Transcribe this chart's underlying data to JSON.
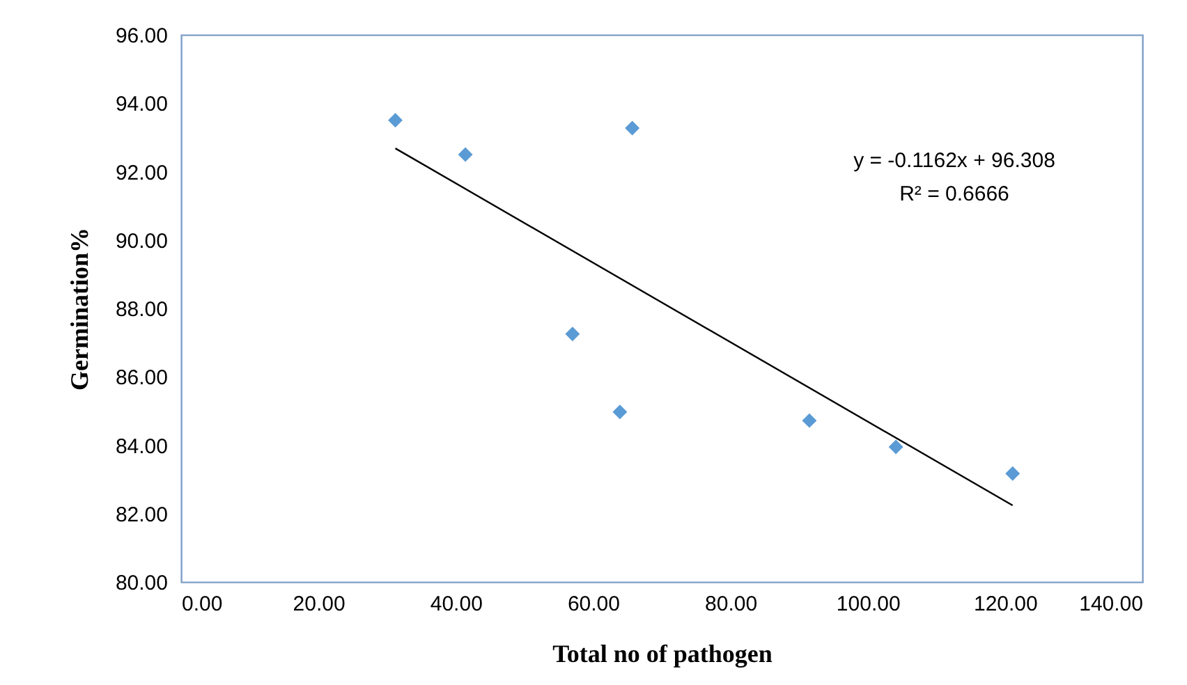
{
  "chart_data": {
    "type": "scatter",
    "xlabel": "Total no of pathogen",
    "ylabel": "Germination%",
    "xlim": [
      0,
      140
    ],
    "ylim": [
      80,
      96
    ],
    "xticks": [
      {
        "value": 0,
        "label": "0.00"
      },
      {
        "value": 20,
        "label": "20.00"
      },
      {
        "value": 40,
        "label": "40.00"
      },
      {
        "value": 60,
        "label": "60.00"
      },
      {
        "value": 80,
        "label": "80.00"
      },
      {
        "value": 100,
        "label": "100.00"
      },
      {
        "value": 120,
        "label": "120.00"
      },
      {
        "value": 140,
        "label": "140.00"
      }
    ],
    "yticks": [
      {
        "value": 80,
        "label": "80.00"
      },
      {
        "value": 82,
        "label": "82.00"
      },
      {
        "value": 84,
        "label": "84.00"
      },
      {
        "value": 86,
        "label": "86.00"
      },
      {
        "value": 88,
        "label": "88.00"
      },
      {
        "value": 90,
        "label": "90.00"
      },
      {
        "value": 92,
        "label": "92.00"
      },
      {
        "value": 94,
        "label": "94.00"
      },
      {
        "value": 96,
        "label": "96.00"
      }
    ],
    "grid": false,
    "series": [
      {
        "marker": "diamond",
        "color": "#5b9bd5",
        "x": [
          31.2,
          41.4,
          65.7,
          57.0,
          63.9,
          91.5,
          104.1,
          121.1
        ],
        "values": [
          93.5,
          92.5,
          93.27,
          87.25,
          84.97,
          84.72,
          83.95,
          83.17
        ]
      },
      {
        "type": "line",
        "marker": "none",
        "color": "#000000",
        "x": [
          31.2,
          121.1
        ],
        "values": [
          92.68,
          82.24
        ]
      }
    ],
    "annotations": [
      "y = -0.1162x + 96.308",
      "R² = 0.6666"
    ]
  }
}
